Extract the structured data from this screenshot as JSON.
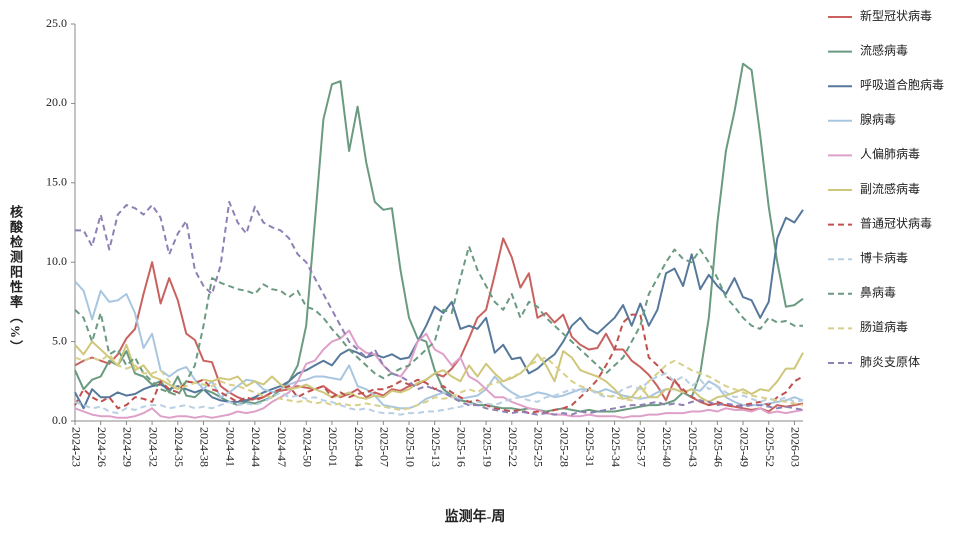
{
  "chart_data": {
    "type": "line",
    "x_label": "监测年-周",
    "y_label": "核酸检测阳性率（%）",
    "categories": [
      "2024-23",
      null,
      null,
      "2024-26",
      null,
      null,
      "2024-29",
      null,
      null,
      "2024-32",
      null,
      null,
      "2024-35",
      null,
      null,
      "2024-38",
      null,
      null,
      "2024-41",
      null,
      null,
      "2024-44",
      null,
      null,
      "2024-47",
      null,
      null,
      "2024-50",
      null,
      null,
      "2025-01",
      null,
      null,
      "2025-04",
      null,
      null,
      "2025-07",
      null,
      null,
      "2025-10",
      null,
      null,
      "2025-13",
      null,
      null,
      "2025-16",
      null,
      null,
      "2025-19",
      null,
      null,
      "2025-22",
      null,
      null,
      "2025-25",
      null,
      null,
      "2025-28",
      null,
      null,
      "2025-31",
      null,
      null,
      "2025-34",
      null,
      null,
      "2025-37",
      null,
      null,
      "2025-40",
      null,
      null,
      "2025-43",
      null,
      null,
      "2025-46",
      null,
      null,
      "2025-49",
      null,
      null,
      "2025-52",
      null,
      null,
      "2026-03",
      null
    ],
    "ylim": [
      0,
      25
    ],
    "yticks": [
      {
        "value": 0,
        "label": "0.0"
      },
      {
        "value": 5,
        "label": "5.0"
      },
      {
        "value": 10,
        "label": "10.0"
      },
      {
        "value": 15,
        "label": "15.0"
      },
      {
        "value": 20,
        "label": "20.0"
      },
      {
        "value": 25,
        "label": "25.0"
      }
    ],
    "grid": false,
    "legend": "right",
    "series": [
      {
        "name": "新型冠状病毒",
        "color": "#c9625f",
        "style": "solid",
        "values": [
          3.5,
          3.8,
          4.0,
          3.8,
          3.6,
          4.2,
          5.2,
          5.8,
          8.0,
          10.0,
          7.4,
          9.0,
          7.6,
          5.5,
          5.1,
          3.8,
          3.7,
          2.2,
          1.8,
          1.5,
          1.3,
          1.4,
          1.5,
          1.8,
          1.9,
          2.0,
          2.2,
          2.1,
          2.0,
          2.2,
          1.8,
          1.5,
          1.7,
          2.0,
          1.5,
          1.8,
          1.6,
          2.0,
          1.9,
          2.2,
          2.3,
          2.6,
          3.0,
          2.8,
          3.3,
          4.0,
          5.2,
          6.5,
          7.0,
          9.2,
          11.5,
          10.3,
          8.4,
          9.3,
          6.5,
          6.8,
          6.2,
          6.7,
          5.3,
          4.8,
          4.5,
          4.6,
          5.5,
          4.5,
          4.5,
          3.8,
          3.4,
          2.9,
          2.2,
          1.3,
          2.6,
          1.8,
          1.5,
          1.2,
          1.0,
          1.1,
          1.0,
          0.9,
          0.8,
          0.7,
          0.8,
          0.6,
          1.0,
          0.9,
          1.0,
          1.1
        ]
      },
      {
        "name": "流感病毒",
        "color": "#6a9a80",
        "style": "solid",
        "values": [
          3.2,
          2.0,
          2.6,
          2.8,
          3.8,
          3.5,
          4.4,
          3.0,
          2.8,
          2.3,
          2.5,
          1.8,
          2.8,
          1.6,
          1.5,
          2.0,
          1.8,
          1.5,
          1.2,
          1.0,
          1.2,
          1.1,
          1.3,
          1.5,
          2.0,
          2.5,
          3.5,
          6.0,
          12.5,
          19.0,
          21.2,
          21.4,
          17.0,
          19.8,
          16.3,
          13.8,
          13.3,
          13.4,
          9.5,
          6.5,
          5.2,
          5.0,
          3.2,
          2.0,
          1.6,
          1.3,
          1.2,
          1.0,
          1.0,
          0.9,
          0.8,
          0.8,
          0.7,
          0.8,
          0.7,
          0.6,
          0.7,
          0.8,
          0.7,
          0.6,
          0.7,
          0.6,
          0.6,
          0.6,
          0.7,
          0.8,
          0.9,
          1.0,
          1.0,
          1.1,
          1.3,
          1.8,
          1.5,
          3.0,
          6.5,
          12.5,
          17.0,
          19.5,
          22.5,
          22.1,
          18.0,
          13.5,
          10.0,
          7.2,
          7.3,
          7.7
        ]
      },
      {
        "name": "呼吸道合胞病毒",
        "color": "#56799b",
        "style": "solid",
        "values": [
          1.8,
          0.8,
          2.0,
          1.5,
          1.5,
          1.8,
          1.6,
          1.7,
          2.0,
          2.2,
          2.3,
          2.0,
          2.2,
          2.0,
          1.8,
          2.0,
          1.5,
          1.3,
          1.2,
          1.2,
          1.3,
          1.5,
          1.8,
          2.0,
          2.2,
          2.5,
          3.0,
          3.2,
          3.5,
          3.8,
          3.5,
          4.2,
          4.5,
          4.3,
          4.0,
          4.2,
          4.0,
          4.2,
          3.9,
          4.0,
          5.0,
          6.0,
          7.2,
          6.8,
          7.5,
          5.8,
          6.0,
          5.8,
          6.5,
          4.3,
          4.8,
          3.9,
          4.0,
          3.0,
          3.3,
          3.8,
          4.2,
          5.0,
          6.0,
          6.5,
          5.8,
          5.5,
          6.0,
          6.5,
          7.3,
          6.0,
          7.4,
          6.0,
          7.0,
          9.3,
          9.6,
          8.5,
          10.5,
          8.3,
          9.2,
          8.5,
          8.0,
          9.0,
          7.8,
          7.6,
          6.5,
          7.5,
          11.5,
          12.8,
          12.5,
          13.3
        ]
      },
      {
        "name": "腺病毒",
        "color": "#a8c6e0",
        "style": "solid",
        "values": [
          8.8,
          8.2,
          6.4,
          8.2,
          7.5,
          7.6,
          8.0,
          6.8,
          4.6,
          5.5,
          3.2,
          2.8,
          3.2,
          3.4,
          2.6,
          2.0,
          2.5,
          1.5,
          1.8,
          2.2,
          2.6,
          2.5,
          2.0,
          1.8,
          2.0,
          2.3,
          2.5,
          2.6,
          2.8,
          2.8,
          2.7,
          2.6,
          3.5,
          2.2,
          2.0,
          1.6,
          1.0,
          0.9,
          0.8,
          0.8,
          1.0,
          1.4,
          1.6,
          1.8,
          1.5,
          1.4,
          1.5,
          1.6,
          2.0,
          2.8,
          2.2,
          1.8,
          1.5,
          1.6,
          1.8,
          1.7,
          1.5,
          1.6,
          1.8,
          2.0,
          2.0,
          1.8,
          2.0,
          1.8,
          1.6,
          1.5,
          1.4,
          1.5,
          1.8,
          2.0,
          2.0,
          1.8,
          2.0,
          1.9,
          2.5,
          2.2,
          1.5,
          1.2,
          1.0,
          1.0,
          1.0,
          1.1,
          1.2,
          1.3,
          1.5,
          1.3
        ]
      },
      {
        "name": "人偏肺病毒",
        "color": "#dea0c8",
        "style": "solid",
        "values": [
          0.8,
          0.6,
          0.4,
          0.3,
          0.3,
          0.2,
          0.2,
          0.3,
          0.5,
          0.8,
          0.3,
          0.2,
          0.3,
          0.3,
          0.2,
          0.3,
          0.2,
          0.3,
          0.4,
          0.6,
          0.5,
          0.6,
          0.8,
          1.2,
          1.5,
          1.8,
          2.5,
          3.6,
          3.8,
          4.5,
          5.0,
          5.2,
          5.7,
          4.7,
          4.3,
          4.2,
          3.5,
          3.0,
          2.8,
          3.5,
          5.0,
          5.5,
          4.5,
          4.2,
          3.5,
          4.0,
          2.8,
          2.5,
          2.0,
          1.5,
          1.5,
          1.2,
          1.0,
          0.8,
          0.7,
          0.5,
          0.4,
          0.4,
          0.3,
          0.3,
          0.4,
          0.3,
          0.3,
          0.3,
          0.2,
          0.3,
          0.3,
          0.4,
          0.4,
          0.5,
          0.5,
          0.5,
          0.6,
          0.6,
          0.7,
          0.6,
          0.8,
          0.7,
          0.7,
          0.6,
          0.8,
          0.5,
          0.6,
          0.5,
          0.6,
          0.7
        ]
      },
      {
        "name": "副流感病毒",
        "color": "#cfc77a",
        "style": "solid",
        "values": [
          4.8,
          4.2,
          5.0,
          4.5,
          4.0,
          3.5,
          4.8,
          3.2,
          3.5,
          2.8,
          2.6,
          2.3,
          2.0,
          2.5,
          2.4,
          2.6,
          2.5,
          2.7,
          2.6,
          2.8,
          2.2,
          2.5,
          2.3,
          2.8,
          2.3,
          2.0,
          2.1,
          2.3,
          2.0,
          1.8,
          1.5,
          1.6,
          1.8,
          1.5,
          1.4,
          1.6,
          1.5,
          1.9,
          1.8,
          2.0,
          2.4,
          2.6,
          3.0,
          3.2,
          2.8,
          2.5,
          3.5,
          2.8,
          3.6,
          3.0,
          2.5,
          2.7,
          3.0,
          3.5,
          4.2,
          3.5,
          2.5,
          4.4,
          4.0,
          3.2,
          3.0,
          2.8,
          2.5,
          2.0,
          1.4,
          1.5,
          2.2,
          1.5,
          1.5,
          2.0,
          2.0,
          1.8,
          2.0,
          1.5,
          1.2,
          1.5,
          1.6,
          1.8,
          2.0,
          1.7,
          2.0,
          1.9,
          2.5,
          3.3,
          3.3,
          4.3
        ]
      },
      {
        "name": "普通冠状病毒",
        "color": "#c0504d",
        "style": "dashed",
        "values": [
          1.0,
          2.0,
          1.5,
          1.2,
          1.5,
          0.8,
          1.0,
          1.5,
          1.4,
          1.2,
          2.5,
          2.0,
          1.8,
          2.5,
          2.4,
          2.6,
          2.0,
          1.8,
          1.5,
          1.2,
          1.5,
          1.3,
          1.5,
          1.8,
          2.0,
          2.2,
          1.5,
          1.8,
          2.0,
          2.2,
          1.5,
          1.8,
          1.5,
          1.7,
          1.8,
          2.0,
          2.0,
          2.2,
          2.5,
          2.3,
          2.6,
          2.4,
          2.0,
          2.2,
          1.8,
          1.5,
          1.2,
          1.3,
          1.0,
          0.8,
          0.7,
          0.6,
          0.7,
          0.5,
          0.6,
          0.5,
          0.7,
          0.8,
          1.0,
          1.5,
          2.0,
          2.6,
          3.5,
          4.5,
          6.2,
          6.7,
          6.7,
          4.0,
          3.5,
          2.8,
          2.5,
          2.0,
          1.5,
          1.3,
          1.0,
          1.2,
          1.0,
          0.9,
          1.0,
          1.1,
          1.2,
          1.0,
          1.5,
          1.8,
          2.5,
          2.8
        ]
      },
      {
        "name": "博卡病毒",
        "color": "#b9cfe3",
        "style": "dashed",
        "values": [
          1.2,
          1.0,
          0.8,
          0.9,
          0.6,
          0.5,
          0.8,
          0.7,
          0.9,
          1.0,
          1.0,
          0.8,
          0.9,
          1.0,
          0.8,
          0.9,
          0.8,
          1.0,
          1.2,
          1.0,
          1.1,
          1.0,
          1.2,
          1.5,
          1.8,
          1.5,
          1.6,
          1.4,
          1.5,
          1.3,
          1.2,
          1.0,
          0.8,
          0.7,
          0.8,
          0.6,
          0.5,
          0.5,
          0.4,
          0.5,
          0.5,
          0.6,
          0.6,
          0.7,
          0.8,
          0.9,
          1.0,
          1.2,
          1.1,
          1.0,
          1.2,
          1.4,
          1.5,
          1.3,
          1.2,
          1.5,
          1.6,
          1.8,
          2.0,
          1.8,
          2.0,
          1.7,
          1.5,
          1.6,
          2.0,
          2.2,
          2.0,
          2.5,
          2.8,
          3.0,
          2.5,
          2.8,
          2.2,
          2.6,
          2.0,
          2.2,
          1.8,
          1.5,
          1.6,
          1.4,
          1.2,
          1.4,
          1.3,
          1.5,
          1.2,
          1.3
        ]
      },
      {
        "name": "鼻病毒",
        "color": "#6a9a80",
        "style": "dashed",
        "values": [
          7.0,
          6.5,
          5.0,
          6.8,
          4.2,
          4.5,
          3.5,
          4.0,
          3.0,
          2.5,
          2.0,
          1.8,
          1.6,
          2.5,
          3.5,
          6.0,
          9.0,
          8.7,
          8.5,
          8.3,
          8.2,
          8.0,
          8.6,
          8.3,
          8.2,
          7.8,
          8.2,
          7.2,
          7.0,
          6.5,
          5.8,
          5.2,
          4.5,
          4.0,
          3.5,
          3.0,
          2.7,
          3.0,
          3.3,
          3.5,
          4.0,
          4.5,
          5.0,
          7.0,
          6.8,
          9.0,
          11.0,
          9.5,
          8.5,
          7.5,
          7.0,
          8.0,
          6.5,
          7.5,
          7.2,
          6.5,
          6.0,
          5.5,
          5.0,
          4.5,
          4.0,
          3.5,
          3.0,
          3.5,
          4.0,
          5.0,
          6.0,
          8.0,
          9.0,
          10.0,
          10.8,
          10.2,
          10.0,
          10.8,
          10.0,
          9.0,
          7.8,
          7.2,
          6.5,
          6.0,
          5.8,
          6.5,
          6.2,
          6.3,
          6.0,
          6.0
        ]
      },
      {
        "name": "肠道病毒",
        "color": "#d8d08a",
        "style": "dashed",
        "values": [
          4.0,
          3.8,
          4.0,
          3.8,
          4.2,
          3.5,
          3.3,
          3.5,
          3.0,
          3.0,
          3.2,
          2.5,
          2.0,
          2.2,
          2.4,
          2.3,
          2.2,
          2.5,
          2.3,
          2.2,
          2.0,
          1.8,
          1.6,
          1.5,
          1.4,
          1.3,
          1.2,
          1.3,
          1.1,
          1.2,
          1.0,
          1.1,
          1.0,
          1.0,
          1.1,
          1.0,
          0.9,
          0.8,
          0.7,
          0.8,
          1.0,
          1.2,
          1.5,
          1.4,
          1.5,
          1.8,
          2.0,
          1.8,
          2.2,
          2.4,
          2.5,
          2.8,
          3.0,
          3.5,
          3.8,
          4.0,
          3.5,
          3.0,
          2.5,
          2.2,
          2.0,
          1.8,
          1.6,
          1.5,
          1.4,
          1.3,
          1.5,
          2.5,
          3.0,
          3.5,
          3.8,
          3.5,
          3.2,
          3.0,
          2.8,
          2.5,
          2.2,
          2.0,
          1.8,
          1.6,
          1.5,
          1.4,
          1.3,
          1.2,
          1.1,
          1.0
        ]
      },
      {
        "name": "肺炎支原体",
        "color": "#8e80b5",
        "style": "dashed",
        "values": [
          12.0,
          12.0,
          11.0,
          13.0,
          10.8,
          13.0,
          13.6,
          13.4,
          13.0,
          13.6,
          12.8,
          10.5,
          11.8,
          12.6,
          9.5,
          8.5,
          8.0,
          9.8,
          13.8,
          12.5,
          11.8,
          13.5,
          12.5,
          12.2,
          12.0,
          11.5,
          10.5,
          10.0,
          9.0,
          8.0,
          7.0,
          6.0,
          5.0,
          4.5,
          4.0,
          4.5,
          3.5,
          3.0,
          2.8,
          2.5,
          2.0,
          2.2,
          2.0,
          1.8,
          1.5,
          1.2,
          1.0,
          1.0,
          0.8,
          0.7,
          0.6,
          0.5,
          0.6,
          0.5,
          0.4,
          0.5,
          0.4,
          0.5,
          0.4,
          0.6,
          0.5,
          0.6,
          0.7,
          0.8,
          0.9,
          1.0,
          1.0,
          1.1,
          1.2,
          1.0,
          1.1,
          1.0,
          1.2,
          1.3,
          1.2,
          1.0,
          1.1,
          1.0,
          0.9,
          1.0,
          1.0,
          0.9,
          0.8,
          0.9,
          0.8,
          0.7
        ]
      }
    ]
  }
}
